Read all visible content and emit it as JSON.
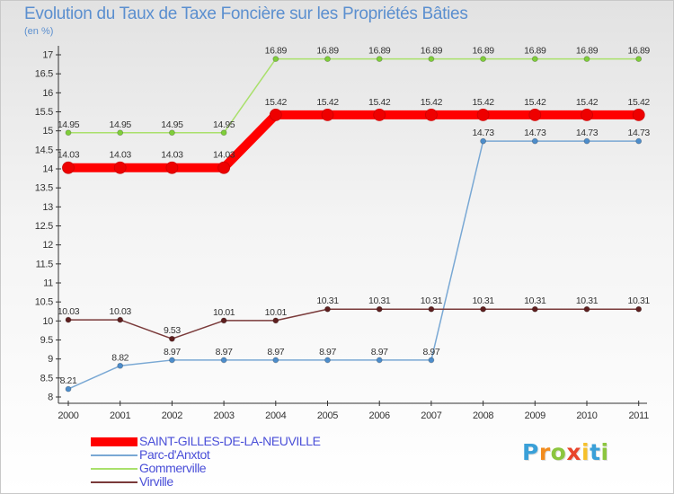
{
  "chart_data": {
    "type": "line",
    "title": "Evolution du Taux de Taxe Foncière sur les Propriétés Bâties",
    "ylabel": "(en %)",
    "xlabel": "",
    "x": [
      "2000",
      "2001",
      "2002",
      "2003",
      "2004",
      "2005",
      "2006",
      "2007",
      "2008",
      "2009",
      "2010",
      "2011"
    ],
    "ylim": [
      8,
      17
    ],
    "yticks": [
      "8",
      "8.5",
      "9",
      "9.5",
      "10",
      "10.5",
      "11",
      "11.5",
      "12",
      "12.5",
      "13",
      "13.5",
      "14",
      "14.5",
      "15",
      "15.5",
      "16",
      "16.5",
      "17"
    ],
    "grid": false,
    "legend_position": "bottom-left",
    "series": [
      {
        "name": "SAINT-GILLES-DE-LA-NEUVILLE",
        "color": "#ff0000",
        "marker_color": "#ee0000",
        "emphasis": true,
        "values": [
          14.03,
          14.03,
          14.03,
          14.03,
          15.42,
          15.42,
          15.42,
          15.42,
          15.42,
          15.42,
          15.42,
          15.42
        ],
        "labels": [
          "14.03",
          "14.03",
          "14.03",
          "14.03",
          "15.42",
          "15.42",
          "15.42",
          "15.42",
          "15.42",
          "15.42",
          "15.42",
          "15.42"
        ]
      },
      {
        "name": "Parc-d'Anxtot",
        "color": "#79a8d4",
        "marker_color": "#4d8dcb",
        "emphasis": false,
        "values": [
          8.21,
          8.82,
          8.97,
          8.97,
          8.97,
          8.97,
          8.97,
          8.97,
          14.73,
          14.73,
          14.73,
          14.73
        ],
        "labels": [
          "8.21",
          "8.82",
          "8.97",
          "8.97",
          "8.97",
          "8.97",
          "8.97",
          "8.97",
          "14.73",
          "14.73",
          "14.73",
          "14.73"
        ]
      },
      {
        "name": "Gommerville",
        "color": "#a9e06b",
        "marker_color": "#7fce3a",
        "emphasis": false,
        "values": [
          14.95,
          14.95,
          14.95,
          14.95,
          16.89,
          16.89,
          16.89,
          16.89,
          16.89,
          16.89,
          16.89,
          16.89
        ],
        "labels": [
          "14.95",
          "14.95",
          "14.95",
          "14.95",
          "16.89",
          "16.89",
          "16.89",
          "16.89",
          "16.89",
          "16.89",
          "16.89",
          "16.89"
        ]
      },
      {
        "name": "Virville",
        "color": "#7a3a3a",
        "marker_color": "#5e1f1f",
        "emphasis": false,
        "values": [
          10.03,
          10.03,
          9.53,
          10.01,
          10.01,
          10.31,
          10.31,
          10.31,
          10.31,
          10.31,
          10.31,
          10.31
        ],
        "labels": [
          "10.03",
          "10.03",
          "9.53",
          "10.01",
          "10.01",
          "10.31",
          "10.31",
          "10.31",
          "10.31",
          "10.31",
          "10.31",
          "10.31"
        ]
      }
    ]
  },
  "brand": {
    "letters": [
      "P",
      "r",
      "o",
      "x",
      "i",
      "t",
      "i"
    ],
    "colors": [
      "#3aa0d8",
      "#f28c1e",
      "#8cc63f",
      "#e8452b",
      "#f6c02a",
      "#3aa0d8",
      "#8cc63f"
    ]
  }
}
